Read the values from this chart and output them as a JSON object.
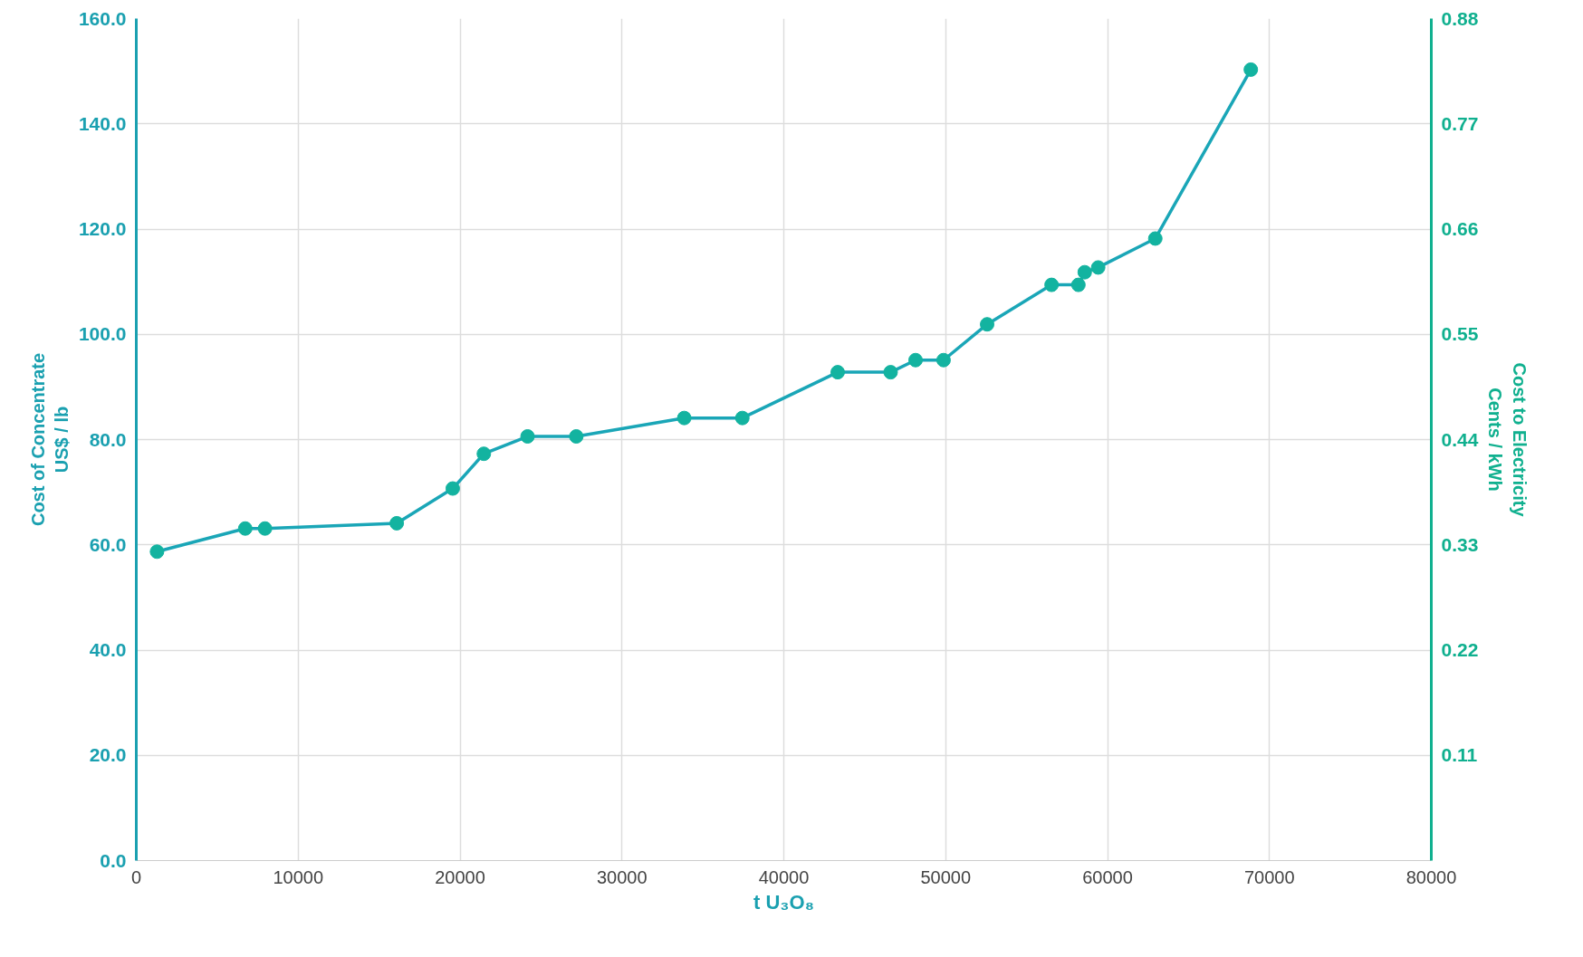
{
  "chart_data": {
    "type": "line",
    "xlabel": "t U₃O₈",
    "ylabel": "Cost of Concentrate\nUS$ / lb",
    "y2label": "Cost to Electricity\nCents / kWh",
    "x": [
      1280,
      6730,
      7950,
      16090,
      19550,
      21470,
      24170,
      27180,
      33850,
      37440,
      43330,
      46600,
      48140,
      49870,
      52560,
      56540,
      58200,
      58590,
      59420,
      62950,
      68850
    ],
    "series": [
      {
        "color": "#1aa6b7",
        "values": [
          58.7,
          63.1,
          63.1,
          64.1,
          70.7,
          77.3,
          80.6,
          80.6,
          84.1,
          84.1,
          92.8,
          92.8,
          95.1,
          95.1,
          101.9,
          109.4,
          109.4,
          111.8,
          112.7,
          118.2,
          150.3
        ]
      }
    ],
    "marker": "circle",
    "line_style": "solid",
    "grid": true,
    "xlim": [
      0,
      80000
    ],
    "xticks": [
      0,
      10000,
      20000,
      30000,
      40000,
      50000,
      60000,
      70000,
      80000
    ],
    "ylim": [
      0,
      160
    ],
    "yticks": [
      {
        "value": 0,
        "label": "0.0"
      },
      {
        "value": 20,
        "label": "20.0"
      },
      {
        "value": 40,
        "label": "40.0"
      },
      {
        "value": 60,
        "label": "60.0"
      },
      {
        "value": 80,
        "label": "80.0"
      },
      {
        "value": 100,
        "label": "100.0"
      },
      {
        "value": 120,
        "label": "120.0"
      },
      {
        "value": 140,
        "label": "140.0"
      },
      {
        "value": 160,
        "label": "160.0"
      }
    ],
    "y2lim": [
      0,
      0.88
    ],
    "y2ticks": [
      0.11,
      0.22,
      0.33,
      0.44,
      0.55,
      0.66,
      0.77,
      0.88
    ]
  }
}
